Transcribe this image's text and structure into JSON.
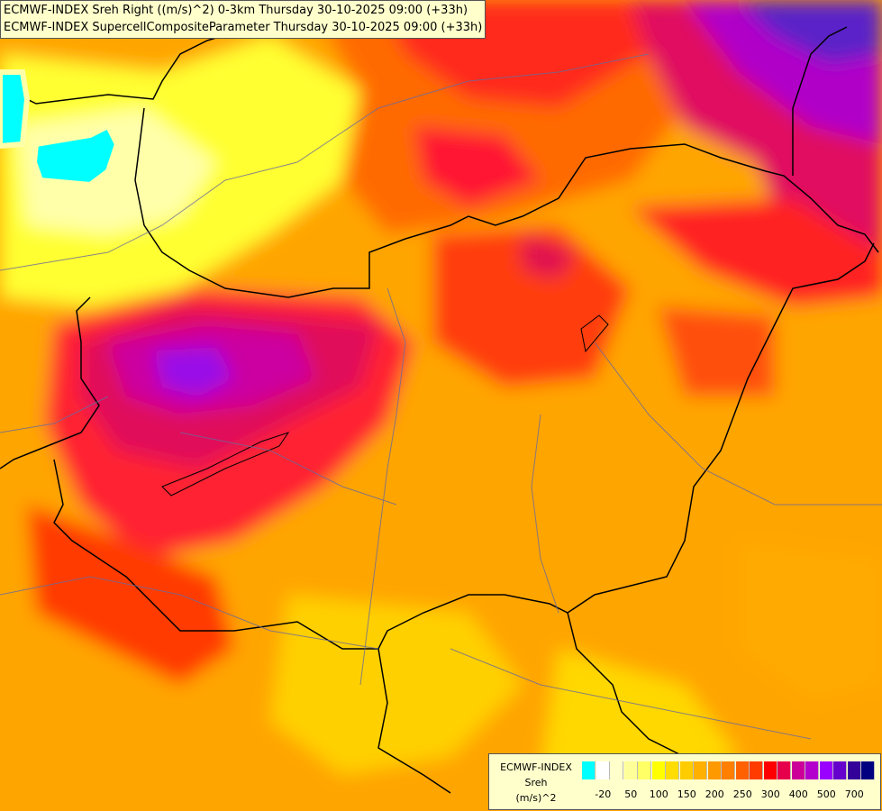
{
  "header": {
    "line1": "ECMWF-INDEX Sreh Right ((m/s)^2) 0-3km Thursday 30-10-2025 09:00 (+33h)",
    "line2": "ECMWF-INDEX SupercellCompositeParameter Thursday 30-10-2025 09:00 (+33h)"
  },
  "legend": {
    "title": "ECMWF-INDEX",
    "variable": "Sreh",
    "unit": "(m/s)^2",
    "colors": [
      "#00ffff",
      "#ffffff",
      "#ffffcc",
      "#ffff99",
      "#ffff66",
      "#ffff00",
      "#ffdd00",
      "#ffcc00",
      "#ffb000",
      "#ff9900",
      "#ff7f00",
      "#ff6000",
      "#ff3b00",
      "#ff0000",
      "#e6004c",
      "#cc0099",
      "#b300cc",
      "#9900ff",
      "#6600cc",
      "#330099",
      "#000080"
    ],
    "ticks": [
      "-20",
      "50",
      "100",
      "150",
      "200",
      "250",
      "300",
      "400",
      "500",
      "700"
    ]
  }
}
